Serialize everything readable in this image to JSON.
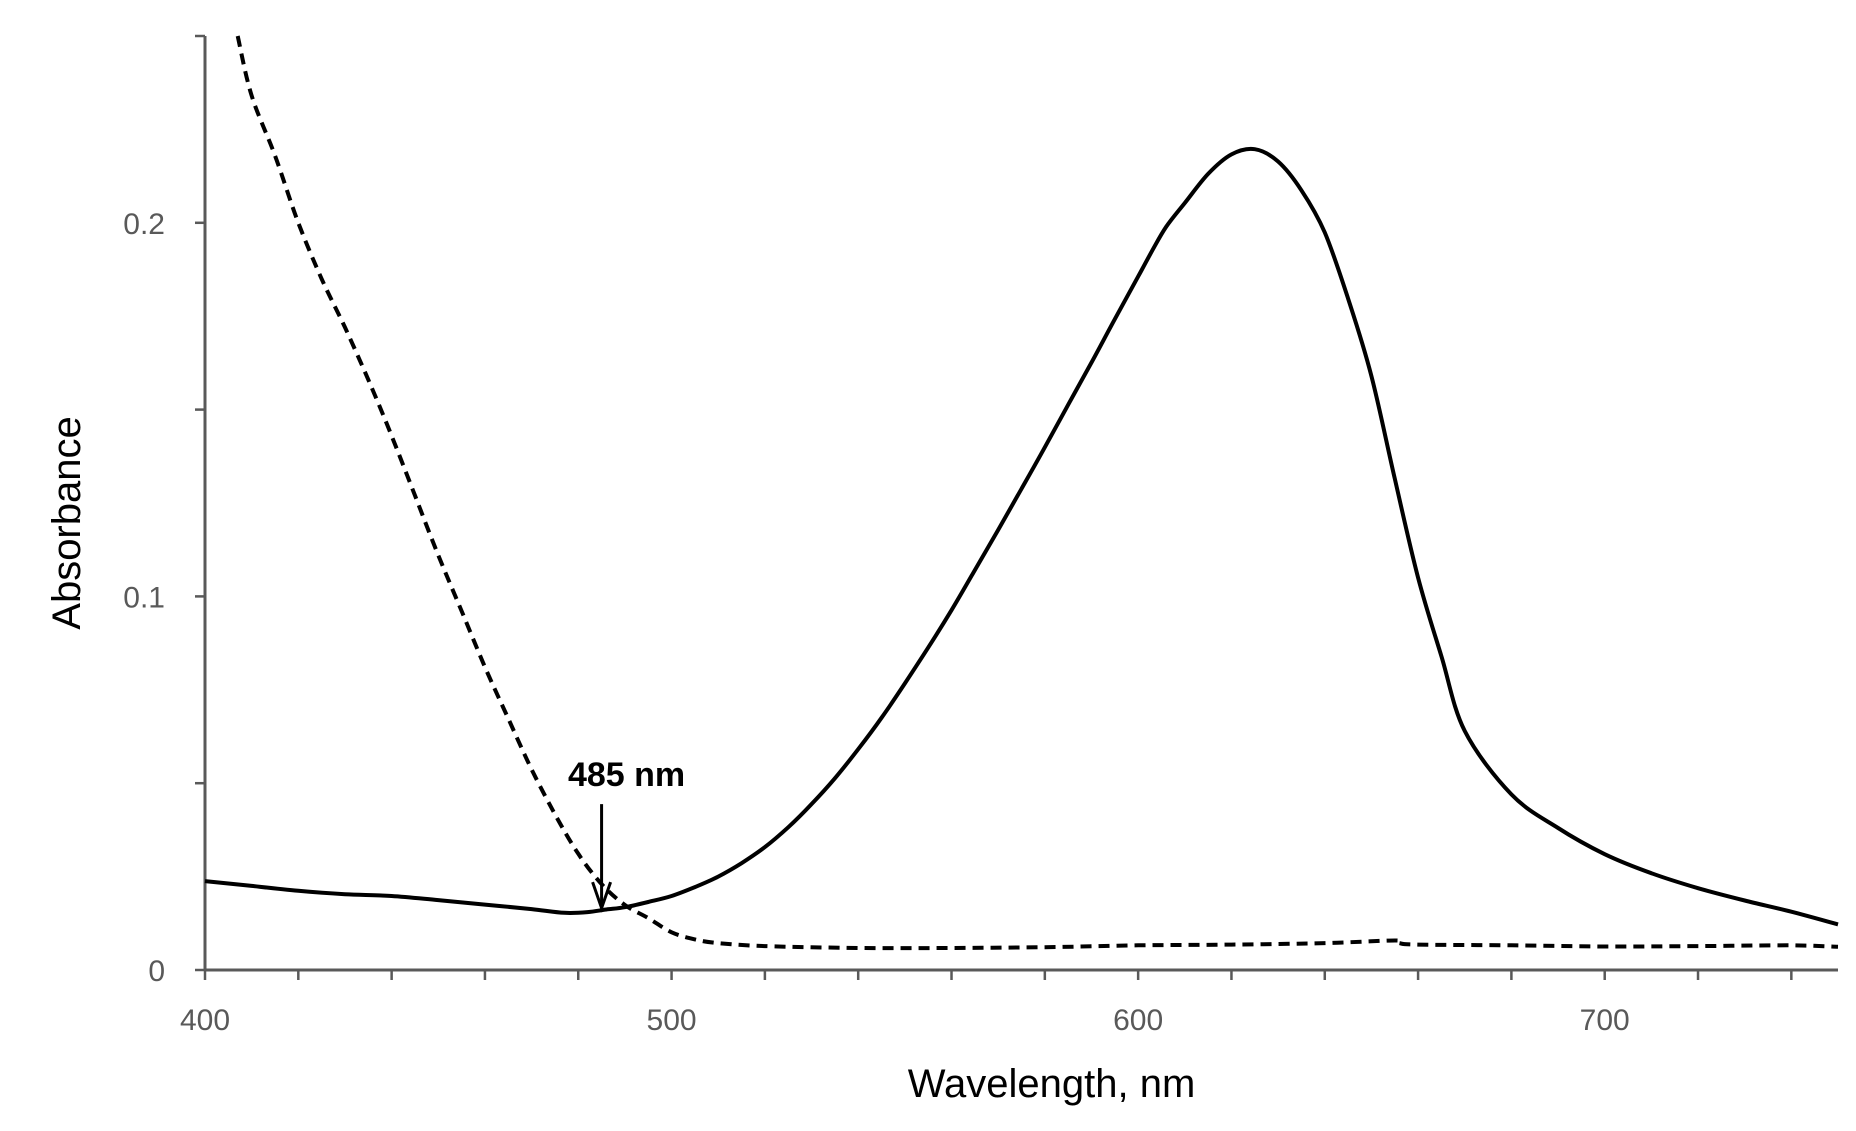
{
  "chart_data": {
    "type": "line",
    "title": "",
    "xlabel": "Wavelength, nm",
    "ylabel": "Absorbance",
    "xlim": [
      400,
      750
    ],
    "ylim": [
      0,
      0.25
    ],
    "x_ticks": [
      400,
      500,
      600,
      700
    ],
    "x_tick_labels": [
      "400",
      "500",
      "600",
      "700"
    ],
    "x_minor_step": 20,
    "y_ticks": [
      0,
      0.1,
      0.2
    ],
    "y_tick_labels": [
      "0",
      "0.1",
      "0.2"
    ],
    "y_minor_step": 0.05,
    "grid": false,
    "legend": "none",
    "series": [
      {
        "style": "solid",
        "color": "#000000",
        "x": [
          400,
          410,
          420,
          430,
          440,
          450,
          460,
          470,
          477,
          482,
          486,
          490,
          495,
          500,
          505,
          510,
          515,
          520,
          525,
          530,
          535,
          540,
          545,
          550,
          555,
          560,
          565,
          570,
          575,
          580,
          585,
          590,
          595,
          600,
          603,
          606,
          610,
          615,
          620,
          625,
          630,
          635,
          640,
          645,
          650,
          655,
          660,
          665,
          670,
          680,
          690,
          700,
          710,
          720,
          730,
          740,
          750
        ],
        "values": [
          0.0238,
          0.0225,
          0.0212,
          0.0203,
          0.0198,
          0.0187,
          0.0175,
          0.0163,
          0.0153,
          0.0155,
          0.0162,
          0.0168,
          0.0182,
          0.0198,
          0.0222,
          0.025,
          0.0286,
          0.0329,
          0.0382,
          0.0444,
          0.0513,
          0.0591,
          0.0675,
          0.0767,
          0.0863,
          0.0963,
          0.107,
          0.1178,
          0.1288,
          0.1399,
          0.1513,
          0.1626,
          0.1742,
          0.1856,
          0.1925,
          0.1989,
          0.2053,
          0.2131,
          0.2183,
          0.2197,
          0.2164,
          0.2087,
          0.1974,
          0.1797,
          0.159,
          0.1315,
          0.105,
          0.084,
          0.064,
          0.047,
          0.038,
          0.031,
          0.0259,
          0.0219,
          0.0186,
          0.0156,
          0.0122
        ]
      },
      {
        "style": "dashed",
        "color": "#000000",
        "x": [
          407,
          410,
          415,
          420,
          425,
          430,
          435,
          440,
          445,
          450,
          455,
          460,
          465,
          470,
          475,
          480,
          485,
          490,
          495,
          500,
          505,
          510,
          520,
          540,
          560,
          580,
          600,
          620,
          640,
          655,
          656,
          660,
          680,
          700,
          720,
          740,
          750
        ],
        "values": [
          0.25,
          0.234,
          0.218,
          0.2,
          0.185,
          0.172,
          0.158,
          0.143,
          0.127,
          0.111,
          0.0961,
          0.0811,
          0.0673,
          0.0537,
          0.0417,
          0.0311,
          0.023,
          0.0174,
          0.0139,
          0.0101,
          0.0082,
          0.0072,
          0.0064,
          0.0059,
          0.0059,
          0.0061,
          0.0066,
          0.0068,
          0.0072,
          0.0079,
          0.0072,
          0.0068,
          0.0066,
          0.0063,
          0.0064,
          0.0066,
          0.0062
        ]
      }
    ],
    "annotation": {
      "text": "485 nm",
      "x": 485,
      "y": 0.0155,
      "arrow": "down"
    }
  }
}
